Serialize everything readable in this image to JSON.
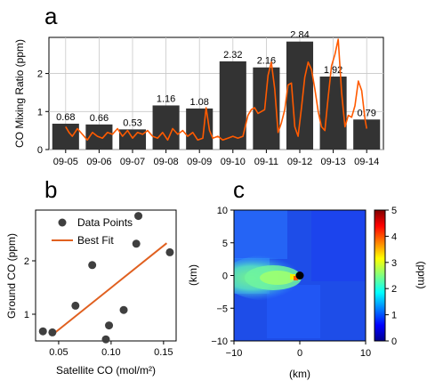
{
  "chart_data": [
    {
      "panel": "a",
      "type": "bar",
      "ylabel": "CO Mixing Ratio (ppm)",
      "ylim": [
        0,
        2.95
      ],
      "yticks": [
        0,
        1,
        2
      ],
      "grid": true,
      "categories": [
        "09-05",
        "09-06",
        "09-07",
        "09-08",
        "09-09",
        "09-10",
        "09-11",
        "09-12",
        "09-13",
        "09-14"
      ],
      "values": [
        0.68,
        0.66,
        0.53,
        1.16,
        1.08,
        2.32,
        2.16,
        2.84,
        1.92,
        0.79
      ],
      "value_labels": [
        "0.68",
        "0.66",
        "0.53",
        "1.16",
        "1.08",
        "2.32",
        "2.16",
        "2.84",
        "1.92",
        "0.79"
      ],
      "bar_color": "#333333",
      "line_color": "#ff5a00",
      "line_series": {
        "x_days": [
          0.0,
          0.1,
          0.2,
          0.35,
          0.5,
          0.65,
          0.8,
          0.95,
          1.1,
          1.25,
          1.4,
          1.55,
          1.7,
          1.85,
          2.0,
          2.15,
          2.3,
          2.45,
          2.6,
          2.75,
          2.9,
          3.05,
          3.2,
          3.35,
          3.5,
          3.65,
          3.8,
          3.95,
          4.1,
          4.2,
          4.3,
          4.4,
          4.55,
          4.7,
          4.85,
          5.0,
          5.15,
          5.3,
          5.45,
          5.55,
          5.65,
          5.75,
          5.85,
          5.95,
          6.05,
          6.15,
          6.25,
          6.35,
          6.45,
          6.55,
          6.65,
          6.75,
          6.85,
          6.95,
          7.05,
          7.15,
          7.25,
          7.35,
          7.45,
          7.55,
          7.65,
          7.75,
          7.85,
          7.95,
          8.05,
          8.15,
          8.25,
          8.35,
          8.45,
          8.55,
          8.65,
          8.75,
          8.85,
          8.95,
          9.0
        ],
        "y": [
          0.6,
          0.45,
          0.35,
          0.55,
          0.4,
          0.25,
          0.45,
          0.35,
          0.3,
          0.45,
          0.4,
          0.55,
          0.35,
          0.5,
          0.3,
          0.45,
          0.4,
          0.5,
          0.35,
          0.3,
          0.45,
          0.25,
          0.55,
          0.4,
          0.5,
          0.35,
          0.45,
          0.25,
          0.3,
          1.1,
          0.5,
          0.3,
          0.35,
          0.25,
          0.3,
          0.35,
          0.3,
          0.35,
          0.9,
          1.05,
          1.1,
          0.95,
          1.0,
          1.05,
          1.95,
          2.3,
          1.6,
          0.45,
          0.7,
          1.05,
          1.7,
          1.75,
          0.6,
          0.35,
          1.1,
          1.9,
          2.3,
          2.1,
          1.6,
          1.0,
          0.6,
          0.5,
          1.4,
          2.2,
          2.5,
          2.9,
          1.5,
          0.6,
          0.9,
          0.85,
          1.15,
          1.8,
          1.55,
          0.8,
          0.55
        ]
      }
    },
    {
      "panel": "b",
      "type": "scatter",
      "xlabel": "Satellite CO (mol/m²)",
      "ylabel": "Ground CO (ppm)",
      "xlim": [
        0.028,
        0.162
      ],
      "ylim": [
        0.5,
        2.95
      ],
      "xticks": [
        0.05,
        0.1,
        0.15
      ],
      "xtick_labels": [
        "0.05",
        "0.10",
        "0.15"
      ],
      "yticks": [
        1,
        2
      ],
      "legend": "upper-left",
      "legend_entries": [
        "Data Points",
        "Best Fit"
      ],
      "point_color": "#3f3f3f",
      "fit_color": "#e06020",
      "x": [
        0.035,
        0.044,
        0.066,
        0.082,
        0.095,
        0.098,
        0.112,
        0.124,
        0.126,
        0.156
      ],
      "y": [
        0.68,
        0.66,
        1.16,
        1.92,
        0.53,
        0.79,
        1.08,
        2.32,
        2.84,
        2.16
      ],
      "fit_x": [
        0.043,
        0.153
      ],
      "fit_y": [
        0.6,
        2.33
      ]
    },
    {
      "panel": "c",
      "type": "heatmap",
      "xlabel": "(km)",
      "ylabel": "(km)",
      "colorbar_label": "(ppm)",
      "xlim": [
        -10,
        10
      ],
      "ylim": [
        -10,
        10
      ],
      "xticks": [
        -10,
        0,
        10
      ],
      "yticks": [
        -10,
        -5,
        0,
        5,
        10
      ],
      "clim": [
        0,
        5
      ],
      "colorbar_ticks": [
        0,
        1,
        2,
        3,
        4,
        5
      ],
      "colormap": "jet",
      "marker": [
        0,
        0
      ]
    }
  ],
  "labels": {
    "panel_a": "a",
    "panel_b": "b",
    "panel_c": "c"
  }
}
